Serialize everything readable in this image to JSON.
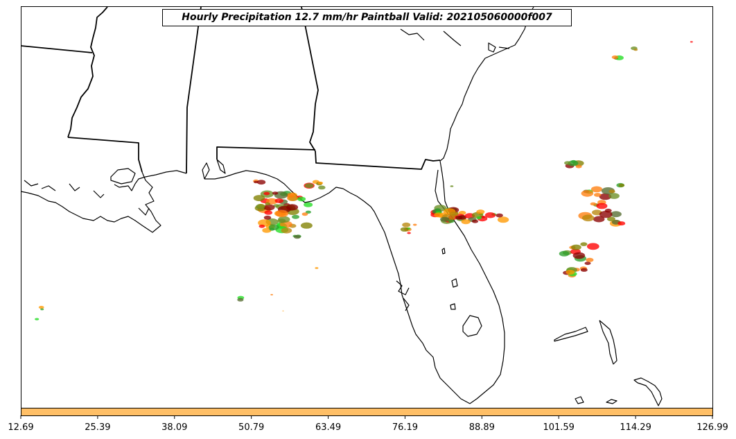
{
  "map": {
    "title": "Hourly Precipitation 12.7 mm/hr Paintball Valid: 202105060000f007",
    "region": "Southeastern United States / Gulf of Mexico",
    "colorbar": {
      "fill_color": "#ffbf66",
      "tick_labels": [
        "12.69",
        "25.39",
        "38.09",
        "50.79",
        "63.49",
        "76.19",
        "88.89",
        "101.59",
        "114.29",
        "126.99"
      ]
    },
    "paintball_colors": [
      "#ff0000",
      "#ff7f0e",
      "#ff9900",
      "#2ca02c",
      "#22dd22",
      "#556b2f",
      "#808000",
      "#8b0000",
      "#b8860b",
      "#6b8e23"
    ],
    "colors": {
      "coastline": "#000000",
      "background": "#ffffff",
      "frame": "#000000"
    }
  }
}
